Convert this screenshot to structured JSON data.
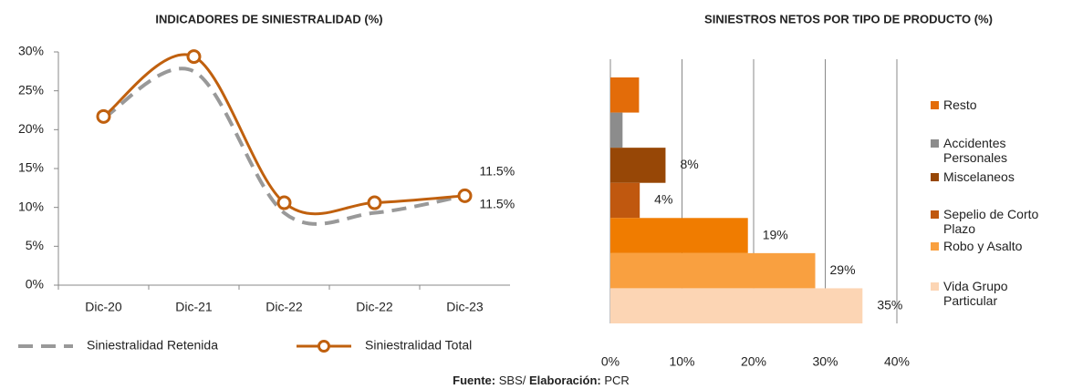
{
  "charts": [
    {
      "type": "line",
      "title": "INDICADORES DE SINIESTRALIDAD (%)",
      "categories": [
        "Dic-20",
        "Dic-21",
        "Dic-22",
        "Dic-22",
        "Dic-23"
      ],
      "series": [
        {
          "name": "Siniestralidad Retenida",
          "color": "#999999",
          "dashed": true,
          "marker": false,
          "values": [
            21.5,
            27.5,
            9.3,
            9.3,
            11.5
          ],
          "value_labels": [
            null,
            null,
            null,
            null,
            "11.5%"
          ]
        },
        {
          "name": "Siniestralidad Total",
          "color": "#c0600e",
          "dashed": false,
          "marker": true,
          "values": [
            21.7,
            29.4,
            10.6,
            10.6,
            11.5
          ],
          "value_labels": [
            null,
            null,
            null,
            null,
            "11.5%"
          ]
        }
      ],
      "ylim": [
        0,
        30
      ],
      "yticks": [
        {
          "value": 0,
          "label": "0%"
        },
        {
          "value": 5,
          "label": "5%"
        },
        {
          "value": 10,
          "label": "10%"
        },
        {
          "value": 15,
          "label": "15%"
        },
        {
          "value": 20,
          "label": "20%"
        },
        {
          "value": 25,
          "label": "25%"
        },
        {
          "value": 30,
          "label": "30%"
        }
      ],
      "smooth": true,
      "grid": false,
      "legend": "bottom"
    },
    {
      "type": "hbar",
      "title": "SINIESTROS NETOS POR TIPO DE PRODUCTO (%)",
      "categories": [
        "Resto",
        "Accidentes Personales",
        "Miscelaneos",
        "Sepelio de Corto Plazo",
        null,
        "Robo y Asalto",
        "Vida Grupo Particular"
      ],
      "values": [
        4.0,
        1.7,
        7.7,
        4.1,
        19.2,
        28.6,
        35.2
      ],
      "value_labels": [
        null,
        null,
        "8%",
        "4%",
        "19%",
        "29%",
        "35%"
      ],
      "colors": [
        "#e36c09",
        "#8c8c8c",
        "#974706",
        "#c0580f",
        "#f07c00",
        "#f9a040",
        "#fcd5b4"
      ],
      "xlim": [
        0,
        40
      ],
      "xticks": [
        {
          "value": 0,
          "label": "0%"
        },
        {
          "value": 10,
          "label": "10%"
        },
        {
          "value": 20,
          "label": "20%"
        },
        {
          "value": 30,
          "label": "30%"
        },
        {
          "value": 40,
          "label": "40%"
        }
      ],
      "grid": true,
      "legend": "right"
    }
  ],
  "source": [
    "Fuente:",
    "SBS/",
    "Elaboración:",
    "PCR"
  ]
}
